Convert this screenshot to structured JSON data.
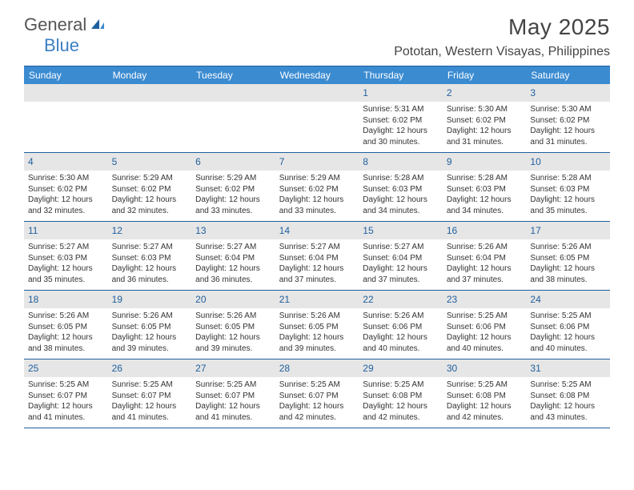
{
  "logo": {
    "part1": "General",
    "part2": "Blue"
  },
  "colors": {
    "brand_blue": "#3b8bd1",
    "rule_blue": "#1f5f9e",
    "date_strip": "#e6e6e6",
    "text_gray": "#444",
    "body_text": "#333"
  },
  "title": "May 2025",
  "location": "Pototan, Western Visayas, Philippines",
  "days_of_week": [
    "Sunday",
    "Monday",
    "Tuesday",
    "Wednesday",
    "Thursday",
    "Friday",
    "Saturday"
  ],
  "weeks": [
    [
      {
        "n": "",
        "sr": "",
        "ss": "",
        "dl": ""
      },
      {
        "n": "",
        "sr": "",
        "ss": "",
        "dl": ""
      },
      {
        "n": "",
        "sr": "",
        "ss": "",
        "dl": ""
      },
      {
        "n": "",
        "sr": "",
        "ss": "",
        "dl": ""
      },
      {
        "n": "1",
        "sr": "Sunrise: 5:31 AM",
        "ss": "Sunset: 6:02 PM",
        "dl": "Daylight: 12 hours and 30 minutes."
      },
      {
        "n": "2",
        "sr": "Sunrise: 5:30 AM",
        "ss": "Sunset: 6:02 PM",
        "dl": "Daylight: 12 hours and 31 minutes."
      },
      {
        "n": "3",
        "sr": "Sunrise: 5:30 AM",
        "ss": "Sunset: 6:02 PM",
        "dl": "Daylight: 12 hours and 31 minutes."
      }
    ],
    [
      {
        "n": "4",
        "sr": "Sunrise: 5:30 AM",
        "ss": "Sunset: 6:02 PM",
        "dl": "Daylight: 12 hours and 32 minutes."
      },
      {
        "n": "5",
        "sr": "Sunrise: 5:29 AM",
        "ss": "Sunset: 6:02 PM",
        "dl": "Daylight: 12 hours and 32 minutes."
      },
      {
        "n": "6",
        "sr": "Sunrise: 5:29 AM",
        "ss": "Sunset: 6:02 PM",
        "dl": "Daylight: 12 hours and 33 minutes."
      },
      {
        "n": "7",
        "sr": "Sunrise: 5:29 AM",
        "ss": "Sunset: 6:02 PM",
        "dl": "Daylight: 12 hours and 33 minutes."
      },
      {
        "n": "8",
        "sr": "Sunrise: 5:28 AM",
        "ss": "Sunset: 6:03 PM",
        "dl": "Daylight: 12 hours and 34 minutes."
      },
      {
        "n": "9",
        "sr": "Sunrise: 5:28 AM",
        "ss": "Sunset: 6:03 PM",
        "dl": "Daylight: 12 hours and 34 minutes."
      },
      {
        "n": "10",
        "sr": "Sunrise: 5:28 AM",
        "ss": "Sunset: 6:03 PM",
        "dl": "Daylight: 12 hours and 35 minutes."
      }
    ],
    [
      {
        "n": "11",
        "sr": "Sunrise: 5:27 AM",
        "ss": "Sunset: 6:03 PM",
        "dl": "Daylight: 12 hours and 35 minutes."
      },
      {
        "n": "12",
        "sr": "Sunrise: 5:27 AM",
        "ss": "Sunset: 6:03 PM",
        "dl": "Daylight: 12 hours and 36 minutes."
      },
      {
        "n": "13",
        "sr": "Sunrise: 5:27 AM",
        "ss": "Sunset: 6:04 PM",
        "dl": "Daylight: 12 hours and 36 minutes."
      },
      {
        "n": "14",
        "sr": "Sunrise: 5:27 AM",
        "ss": "Sunset: 6:04 PM",
        "dl": "Daylight: 12 hours and 37 minutes."
      },
      {
        "n": "15",
        "sr": "Sunrise: 5:27 AM",
        "ss": "Sunset: 6:04 PM",
        "dl": "Daylight: 12 hours and 37 minutes."
      },
      {
        "n": "16",
        "sr": "Sunrise: 5:26 AM",
        "ss": "Sunset: 6:04 PM",
        "dl": "Daylight: 12 hours and 37 minutes."
      },
      {
        "n": "17",
        "sr": "Sunrise: 5:26 AM",
        "ss": "Sunset: 6:05 PM",
        "dl": "Daylight: 12 hours and 38 minutes."
      }
    ],
    [
      {
        "n": "18",
        "sr": "Sunrise: 5:26 AM",
        "ss": "Sunset: 6:05 PM",
        "dl": "Daylight: 12 hours and 38 minutes."
      },
      {
        "n": "19",
        "sr": "Sunrise: 5:26 AM",
        "ss": "Sunset: 6:05 PM",
        "dl": "Daylight: 12 hours and 39 minutes."
      },
      {
        "n": "20",
        "sr": "Sunrise: 5:26 AM",
        "ss": "Sunset: 6:05 PM",
        "dl": "Daylight: 12 hours and 39 minutes."
      },
      {
        "n": "21",
        "sr": "Sunrise: 5:26 AM",
        "ss": "Sunset: 6:05 PM",
        "dl": "Daylight: 12 hours and 39 minutes."
      },
      {
        "n": "22",
        "sr": "Sunrise: 5:26 AM",
        "ss": "Sunset: 6:06 PM",
        "dl": "Daylight: 12 hours and 40 minutes."
      },
      {
        "n": "23",
        "sr": "Sunrise: 5:25 AM",
        "ss": "Sunset: 6:06 PM",
        "dl": "Daylight: 12 hours and 40 minutes."
      },
      {
        "n": "24",
        "sr": "Sunrise: 5:25 AM",
        "ss": "Sunset: 6:06 PM",
        "dl": "Daylight: 12 hours and 40 minutes."
      }
    ],
    [
      {
        "n": "25",
        "sr": "Sunrise: 5:25 AM",
        "ss": "Sunset: 6:07 PM",
        "dl": "Daylight: 12 hours and 41 minutes."
      },
      {
        "n": "26",
        "sr": "Sunrise: 5:25 AM",
        "ss": "Sunset: 6:07 PM",
        "dl": "Daylight: 12 hours and 41 minutes."
      },
      {
        "n": "27",
        "sr": "Sunrise: 5:25 AM",
        "ss": "Sunset: 6:07 PM",
        "dl": "Daylight: 12 hours and 41 minutes."
      },
      {
        "n": "28",
        "sr": "Sunrise: 5:25 AM",
        "ss": "Sunset: 6:07 PM",
        "dl": "Daylight: 12 hours and 42 minutes."
      },
      {
        "n": "29",
        "sr": "Sunrise: 5:25 AM",
        "ss": "Sunset: 6:08 PM",
        "dl": "Daylight: 12 hours and 42 minutes."
      },
      {
        "n": "30",
        "sr": "Sunrise: 5:25 AM",
        "ss": "Sunset: 6:08 PM",
        "dl": "Daylight: 12 hours and 42 minutes."
      },
      {
        "n": "31",
        "sr": "Sunrise: 5:25 AM",
        "ss": "Sunset: 6:08 PM",
        "dl": "Daylight: 12 hours and 43 minutes."
      }
    ]
  ]
}
